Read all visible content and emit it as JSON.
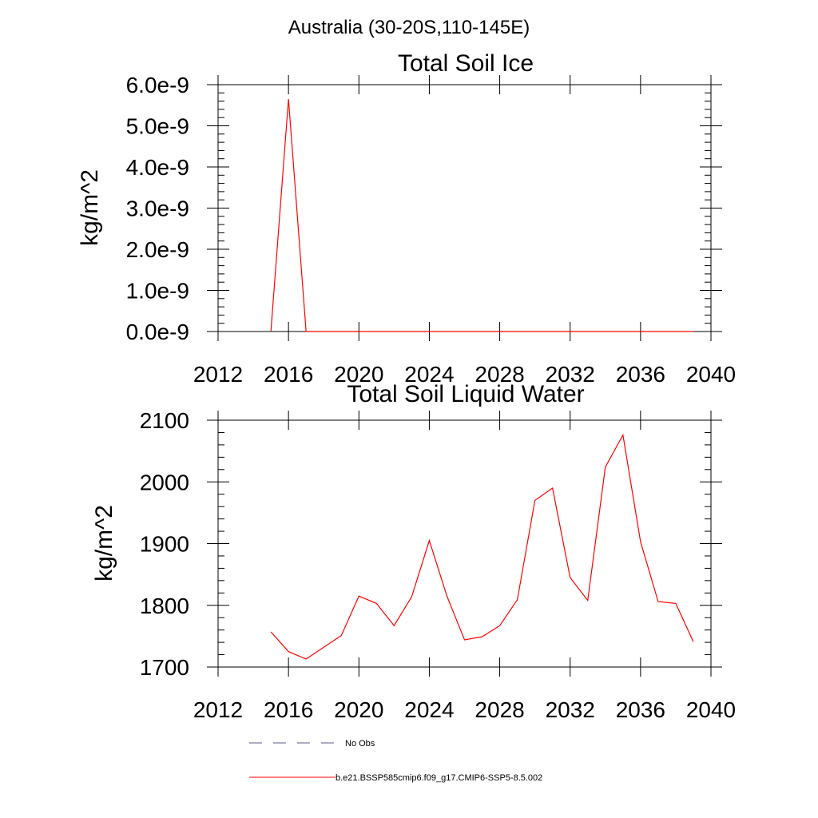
{
  "figure": {
    "suptitle": "Australia (30-20S,110-145E)"
  },
  "legend": {
    "entries": [
      {
        "label": "No Obs",
        "style": "dashed",
        "color": "#5a5a8a"
      },
      {
        "label": "b.e21.BSSP585cmip6.f09_g17.CMIP6-SSP5-8.5.002",
        "style": "solid",
        "color": "#ff0000"
      }
    ]
  },
  "chart_data": [
    {
      "type": "line",
      "title": "Total Soil Ice",
      "xlabel": "",
      "ylabel": "kg/m^2",
      "xlim": [
        2012,
        2040
      ],
      "ylim": [
        0,
        6e-09
      ],
      "xticks": [
        2012,
        2016,
        2020,
        2024,
        2028,
        2032,
        2036,
        2040
      ],
      "xtick_labels": [
        "2012",
        "2016",
        "2020",
        "2024",
        "2028",
        "2032",
        "2036",
        "2040"
      ],
      "yticks": [
        0,
        1e-09,
        2e-09,
        3e-09,
        4e-09,
        5e-09,
        6e-09
      ],
      "ytick_labels": [
        "0.0e-9",
        "1.0e-9",
        "2.0e-9",
        "3.0e-9",
        "4.0e-9",
        "5.0e-9",
        "6.0e-9"
      ],
      "grid": false,
      "series": [
        {
          "name": "b.e21.BSSP585cmip6.f09_g17.CMIP6-SSP5-8.5.002",
          "color": "#ff0000",
          "x": [
            2015,
            2016,
            2017,
            2018,
            2019,
            2020,
            2021,
            2022,
            2023,
            2024,
            2025,
            2026,
            2027,
            2028,
            2029,
            2030,
            2031,
            2032,
            2033,
            2034,
            2035,
            2036,
            2037,
            2038,
            2039
          ],
          "y": [
            0,
            5.65e-09,
            0,
            0,
            0,
            0,
            0,
            0,
            0,
            0,
            0,
            0,
            0,
            0,
            0,
            0,
            0,
            0,
            0,
            0,
            0,
            0,
            0,
            0,
            0
          ]
        }
      ]
    },
    {
      "type": "line",
      "title": "Total Soil Liquid Water",
      "xlabel": "",
      "ylabel": "kg/m^2",
      "xlim": [
        2012,
        2040
      ],
      "ylim": [
        1700,
        2100
      ],
      "xticks": [
        2012,
        2016,
        2020,
        2024,
        2028,
        2032,
        2036,
        2040
      ],
      "xtick_labels": [
        "2012",
        "2016",
        "2020",
        "2024",
        "2028",
        "2032",
        "2036",
        "2040"
      ],
      "yticks": [
        1700,
        1800,
        1900,
        2000,
        2100
      ],
      "ytick_labels": [
        "1700",
        "1800",
        "1900",
        "2000",
        "2100"
      ],
      "grid": false,
      "series": [
        {
          "name": "b.e21.BSSP585cmip6.f09_g17.CMIP6-SSP5-8.5.002",
          "color": "#ff0000",
          "x": [
            2015,
            2016,
            2017,
            2018,
            2019,
            2020,
            2021,
            2022,
            2023,
            2024,
            2025,
            2026,
            2027,
            2028,
            2029,
            2030,
            2031,
            2032,
            2033,
            2034,
            2035,
            2036,
            2037,
            2038,
            2039
          ],
          "y": [
            1757,
            1725,
            1713,
            1732,
            1751,
            1815,
            1803,
            1767,
            1814,
            1905,
            1815,
            1744,
            1749,
            1767,
            1809,
            1970,
            1990,
            1845,
            1808,
            2024,
            2076,
            1903,
            1806,
            1803,
            1741
          ]
        }
      ]
    }
  ]
}
